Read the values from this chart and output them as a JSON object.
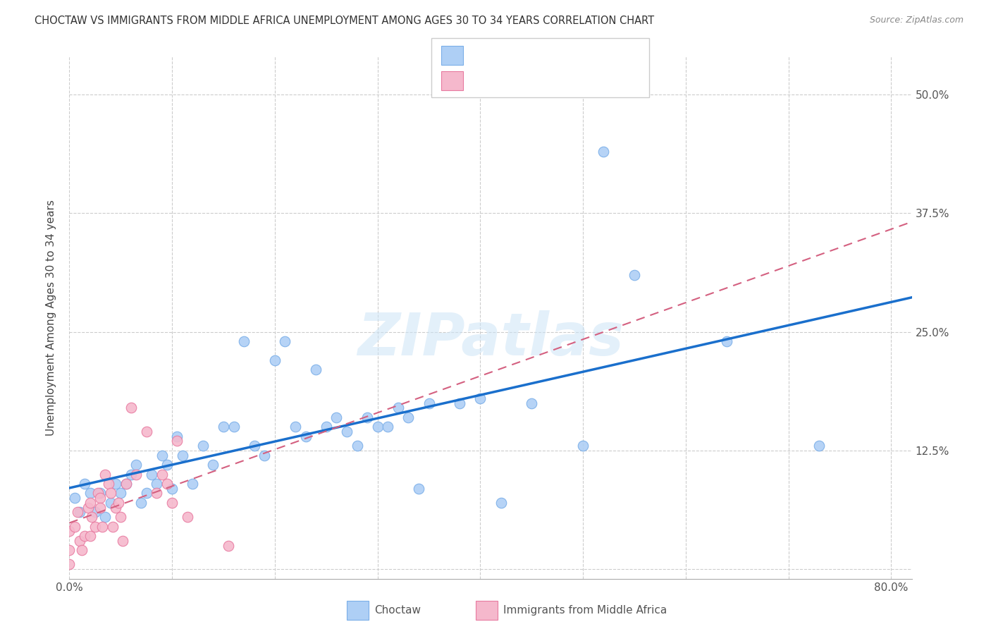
{
  "title": "CHOCTAW VS IMMIGRANTS FROM MIDDLE AFRICA UNEMPLOYMENT AMONG AGES 30 TO 34 YEARS CORRELATION CHART",
  "source": "Source: ZipAtlas.com",
  "ylabel": "Unemployment Among Ages 30 to 34 years",
  "xlim": [
    0.0,
    0.82
  ],
  "ylim": [
    -0.01,
    0.54
  ],
  "yticks": [
    0.0,
    0.125,
    0.25,
    0.375,
    0.5
  ],
  "ytick_labels": [
    "",
    "12.5%",
    "25.0%",
    "37.5%",
    "50.0%"
  ],
  "xticks": [
    0.0,
    0.1,
    0.2,
    0.3,
    0.4,
    0.5,
    0.6,
    0.7,
    0.8
  ],
  "xtick_labels": [
    "0.0%",
    "",
    "",
    "",
    "",
    "",
    "",
    "",
    "80.0%"
  ],
  "grid_color": "#cccccc",
  "background_color": "#ffffff",
  "choctaw_color": "#aecff5",
  "choctaw_edge": "#7aaee8",
  "immigrant_color": "#f5b8cc",
  "immigrant_edge": "#e87aa0",
  "trendline1_color": "#1a6fcc",
  "trendline2_color": "#d46080",
  "choctaw_x": [
    0.005,
    0.01,
    0.015,
    0.02,
    0.025,
    0.03,
    0.035,
    0.04,
    0.045,
    0.05,
    0.055,
    0.06,
    0.065,
    0.07,
    0.075,
    0.08,
    0.085,
    0.09,
    0.095,
    0.1,
    0.105,
    0.11,
    0.12,
    0.13,
    0.14,
    0.15,
    0.16,
    0.17,
    0.18,
    0.19,
    0.2,
    0.21,
    0.22,
    0.23,
    0.24,
    0.25,
    0.26,
    0.27,
    0.28,
    0.29,
    0.3,
    0.31,
    0.32,
    0.33,
    0.34,
    0.35,
    0.38,
    0.4,
    0.42,
    0.45,
    0.5,
    0.52,
    0.55,
    0.64,
    0.73
  ],
  "choctaw_y": [
    0.075,
    0.06,
    0.09,
    0.08,
    0.06,
    0.08,
    0.055,
    0.07,
    0.09,
    0.08,
    0.09,
    0.1,
    0.11,
    0.07,
    0.08,
    0.1,
    0.09,
    0.12,
    0.11,
    0.085,
    0.14,
    0.12,
    0.09,
    0.13,
    0.11,
    0.15,
    0.15,
    0.24,
    0.13,
    0.12,
    0.22,
    0.24,
    0.15,
    0.14,
    0.21,
    0.15,
    0.16,
    0.145,
    0.13,
    0.16,
    0.15,
    0.15,
    0.17,
    0.16,
    0.085,
    0.175,
    0.175,
    0.18,
    0.07,
    0.175,
    0.13,
    0.44,
    0.31,
    0.24,
    0.13
  ],
  "immigrant_x": [
    0.0,
    0.0,
    0.0,
    0.005,
    0.008,
    0.01,
    0.012,
    0.015,
    0.018,
    0.02,
    0.02,
    0.022,
    0.025,
    0.028,
    0.03,
    0.03,
    0.032,
    0.035,
    0.038,
    0.04,
    0.042,
    0.045,
    0.048,
    0.05,
    0.052,
    0.055,
    0.06,
    0.065,
    0.075,
    0.085,
    0.09,
    0.095,
    0.1,
    0.105,
    0.115,
    0.155
  ],
  "immigrant_y": [
    0.04,
    0.02,
    0.005,
    0.045,
    0.06,
    0.03,
    0.02,
    0.035,
    0.065,
    0.07,
    0.035,
    0.055,
    0.045,
    0.08,
    0.075,
    0.065,
    0.045,
    0.1,
    0.09,
    0.08,
    0.045,
    0.065,
    0.07,
    0.055,
    0.03,
    0.09,
    0.17,
    0.1,
    0.145,
    0.08,
    0.1,
    0.09,
    0.07,
    0.135,
    0.055,
    0.025
  ]
}
